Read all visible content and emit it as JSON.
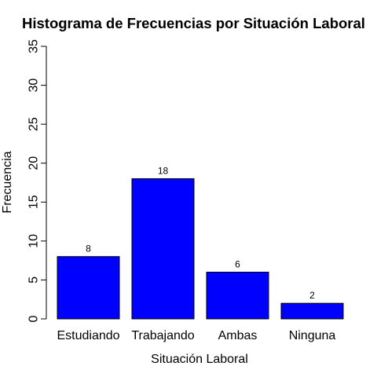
{
  "chart_data": {
    "type": "bar",
    "title": "Histograma de Frecuencias por Situación Laboral",
    "xlabel": "Situación Laboral",
    "ylabel": "Frecuencia",
    "categories": [
      "Estudiando",
      "Trabajando",
      "Ambas",
      "Ninguna"
    ],
    "values": [
      8,
      18,
      6,
      2
    ],
    "data_labels": [
      "8",
      "18",
      "6",
      "2"
    ],
    "ylim": [
      0,
      35
    ],
    "yticks": [
      0,
      5,
      10,
      15,
      20,
      25,
      30,
      35
    ],
    "ytick_labels": [
      "0",
      "5",
      "10",
      "15",
      "20",
      "25",
      "30",
      "35"
    ],
    "grid": false,
    "bar_color": "#0000ff",
    "bar_border_color": "#000000"
  }
}
